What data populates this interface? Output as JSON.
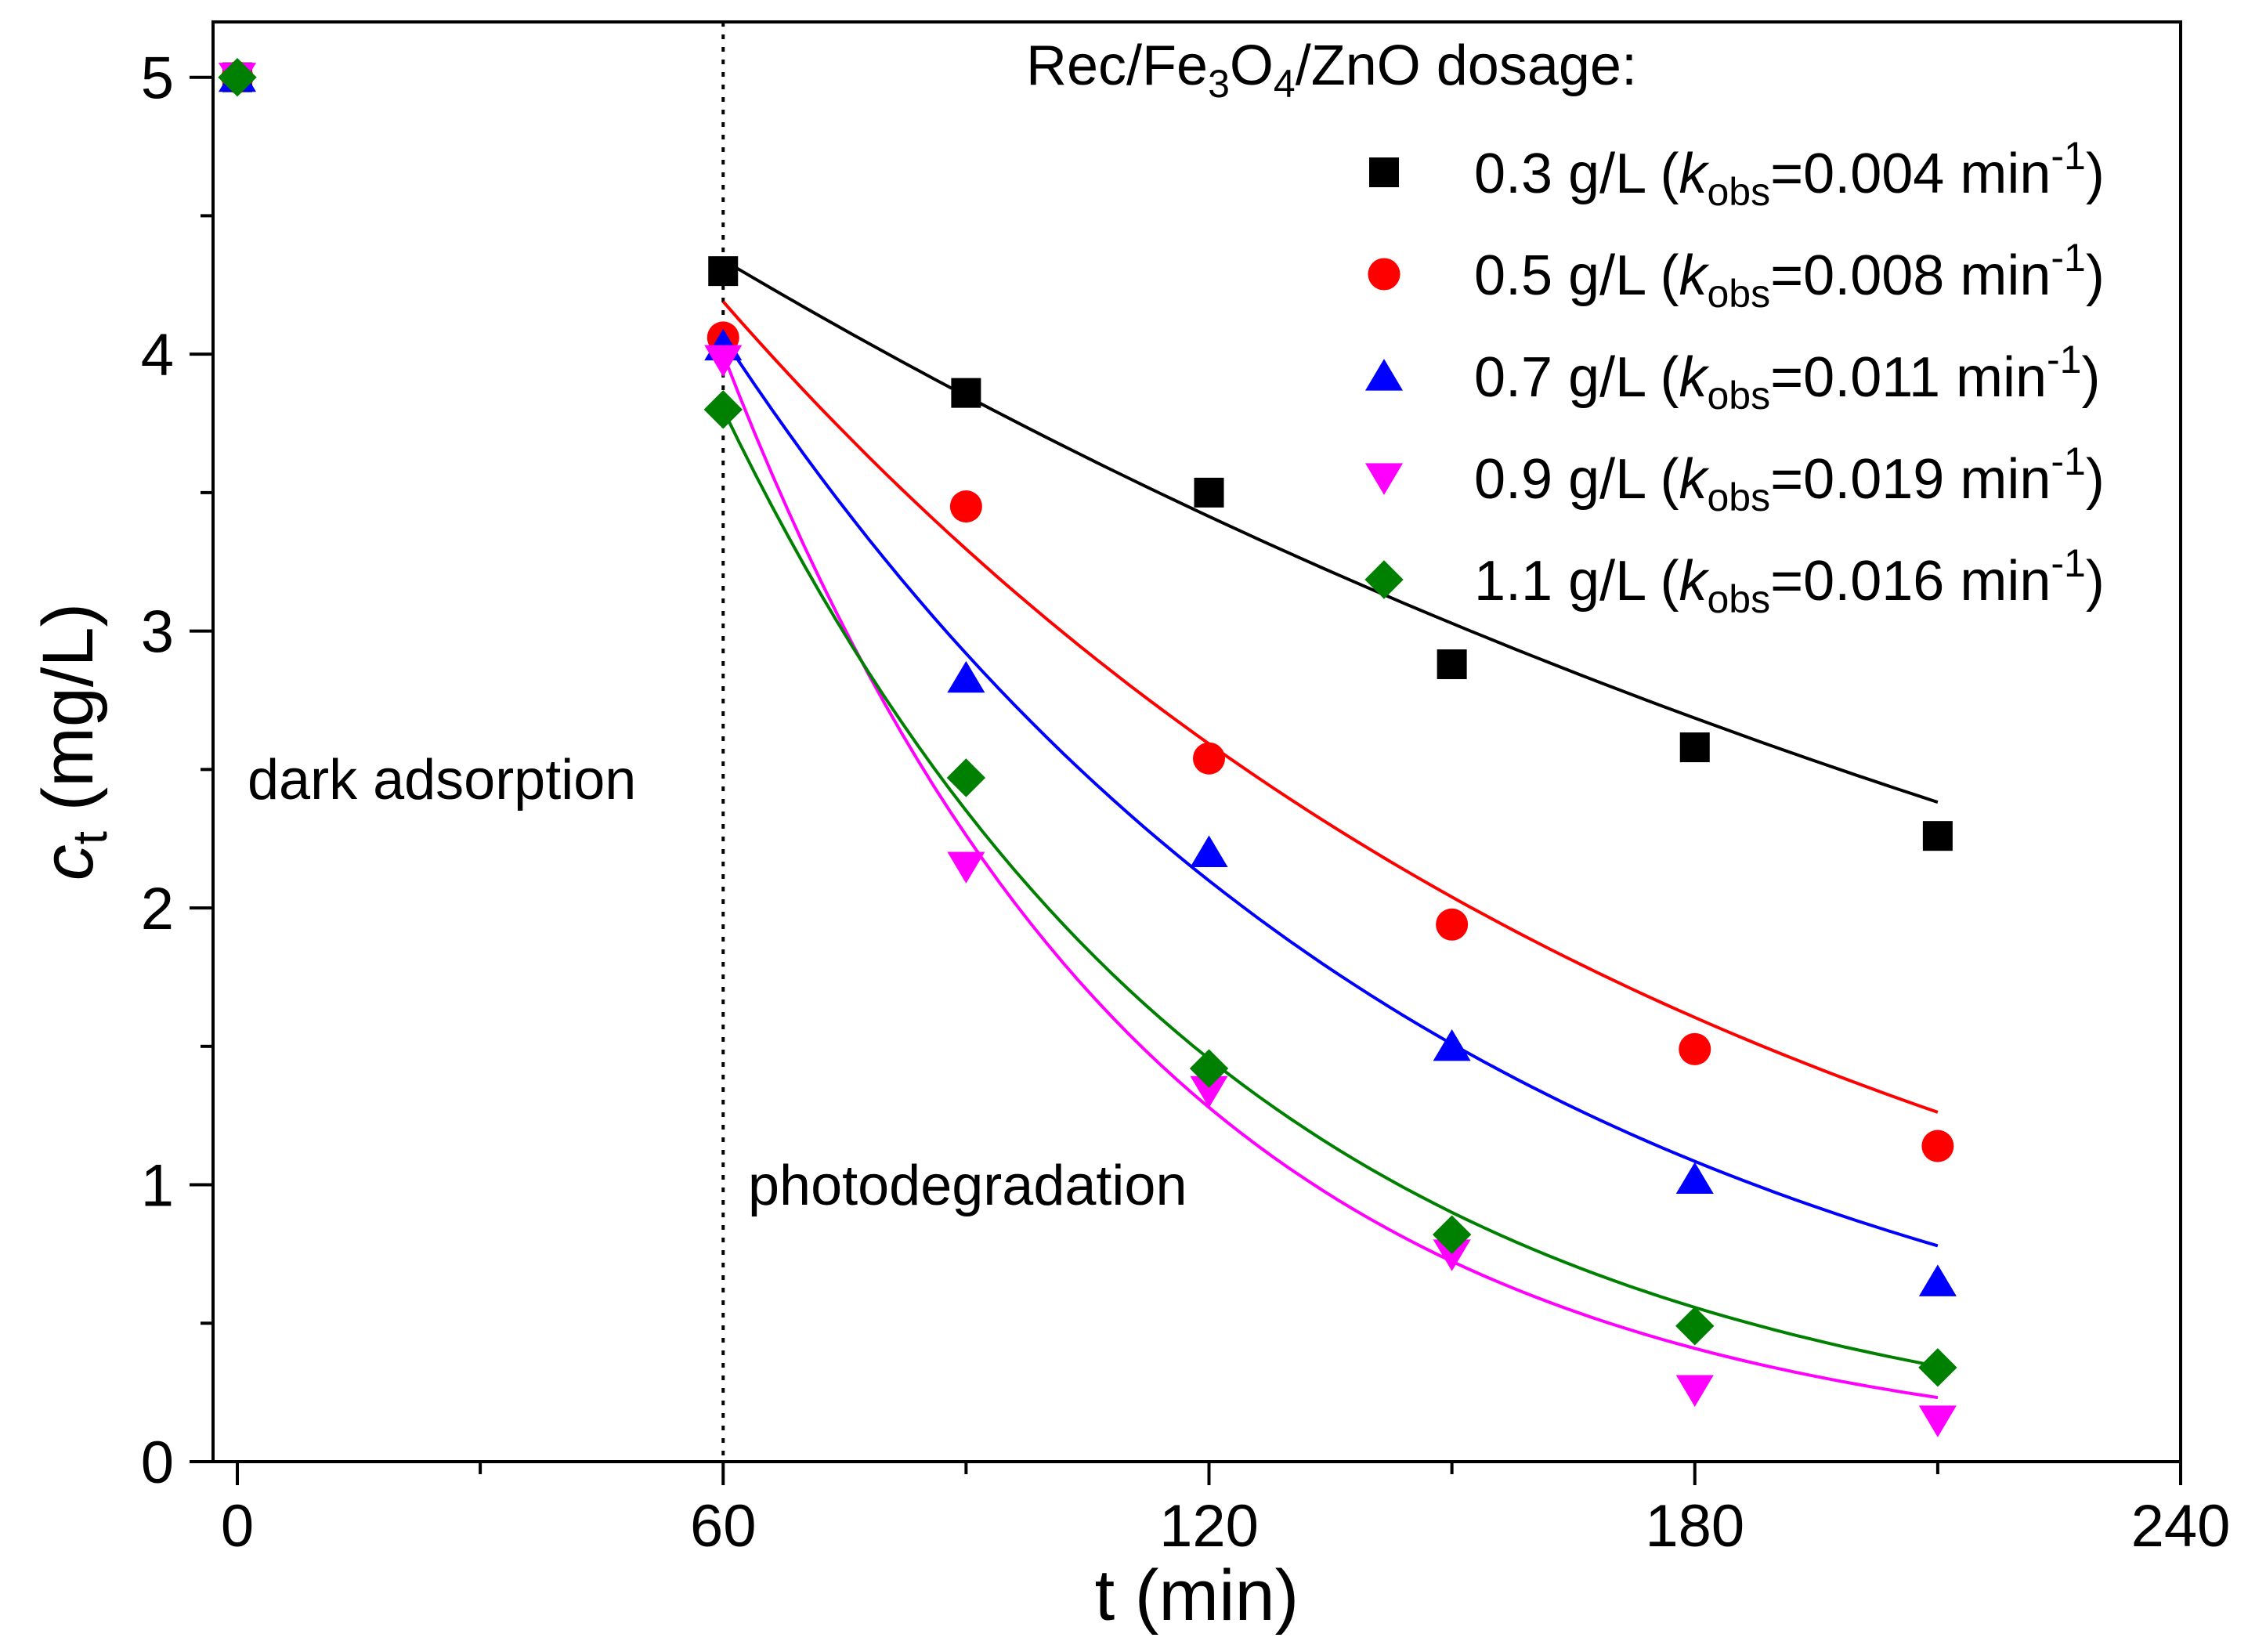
{
  "chart_data": {
    "type": "scatter",
    "xlabel": "t (min)",
    "ylabel": "c_t (mg/L)",
    "ylabel_main": "c",
    "ylabel_sub": "t",
    "ylabel_rest": " (mg/L)",
    "xlim": [
      -3,
      240
    ],
    "ylim": [
      0,
      5.2
    ],
    "xticks": [
      0,
      60,
      120,
      180,
      240
    ],
    "xtick_labels": [
      "0",
      "60",
      "120",
      "180",
      "240"
    ],
    "xminor": [
      30,
      90,
      150,
      210
    ],
    "yticks": [
      0,
      1,
      2,
      3,
      4,
      5
    ],
    "ytick_labels": [
      "0",
      "1",
      "2",
      "3",
      "4",
      "5"
    ],
    "yminor": [
      0.5,
      1.5,
      2.5,
      3.5,
      4.5
    ],
    "annotations": {
      "dark": "dark adsorption",
      "photo": "photodegradation",
      "divider_x": 60
    },
    "legend": {
      "placement": "top-right",
      "title_parts": [
        "Rec/Fe",
        "3",
        "O",
        "4",
        "/ZnO dosage:"
      ]
    },
    "series": [
      {
        "name": "0.3 g/L",
        "dose": "0.3 g/L (",
        "k_symbol": "k",
        "k_sub": "obs",
        "k_value": "=0.004 min",
        "k_exp": "-1",
        "k_close": ")",
        "k": 0.004,
        "marker": "square",
        "color": "#000000",
        "x": [
          0,
          60,
          90,
          120,
          150,
          180,
          210
        ],
        "y": [
          5.0,
          4.3,
          3.86,
          3.5,
          2.88,
          2.58,
          2.26
        ],
        "fit": {
          "x0": 60,
          "c0": 4.34,
          "x1": 210
        }
      },
      {
        "name": "0.5 g/L",
        "dose": "0.5 g/L (",
        "k_symbol": "k",
        "k_sub": "obs",
        "k_value": "=0.008 min",
        "k_exp": "-1",
        "k_close": ")",
        "k": 0.008,
        "marker": "circle",
        "color": "#ff0000",
        "x": [
          0,
          60,
          90,
          120,
          150,
          180,
          210
        ],
        "y": [
          5.0,
          4.06,
          3.45,
          2.54,
          1.94,
          1.49,
          1.14
        ],
        "fit": {
          "x0": 60,
          "c0": 4.19,
          "x1": 210
        }
      },
      {
        "name": "0.7 g/L",
        "dose": "0.7 g/L (",
        "k_symbol": "k",
        "k_sub": "obs",
        "k_value": "=0.011 min",
        "k_exp": "-1",
        "k_close": ")",
        "k": 0.011,
        "marker": "triangle-up",
        "color": "#0000ff",
        "x": [
          0,
          60,
          90,
          120,
          150,
          180,
          210
        ],
        "y": [
          5.0,
          4.03,
          2.83,
          2.2,
          1.5,
          1.02,
          0.65
        ],
        "fit": {
          "x0": 60,
          "c0": 4.06,
          "x1": 210
        }
      },
      {
        "name": "0.9 g/L",
        "dose": "0.9 g/L (",
        "k_symbol": "k",
        "k_sub": "obs",
        "k_value": "=0.019 min",
        "k_exp": "-1",
        "k_close": ")",
        "k": 0.019,
        "marker": "triangle-down",
        "color": "#ff00ff",
        "x": [
          0,
          60,
          90,
          120,
          150,
          180,
          210
        ],
        "y": [
          5.0,
          3.98,
          2.15,
          1.34,
          0.75,
          0.26,
          0.15
        ],
        "fit": {
          "x0": 60,
          "c0": 4.0,
          "x1": 210
        }
      },
      {
        "name": "1.1 g/L",
        "dose": "1.1 g/L (",
        "k_symbol": "k",
        "k_sub": "obs",
        "k_value": "=0.016 min",
        "k_exp": "-1",
        "k_close": ")",
        "k": 0.016,
        "marker": "diamond",
        "color": "#008000",
        "x": [
          0,
          60,
          90,
          120,
          150,
          180,
          210
        ],
        "y": [
          5.0,
          3.8,
          2.47,
          1.42,
          0.82,
          0.49,
          0.34
        ],
        "fit": {
          "x0": 60,
          "c0": 3.8,
          "x1": 210
        }
      }
    ]
  }
}
